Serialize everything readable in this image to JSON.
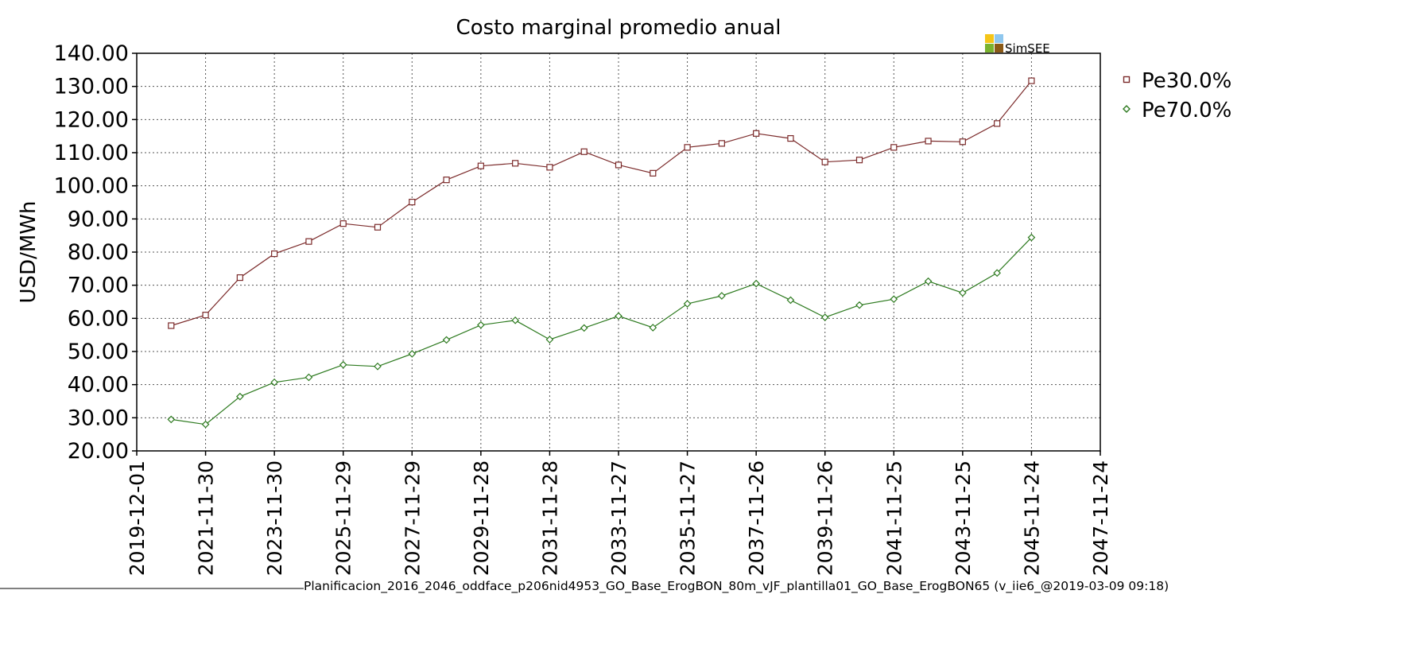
{
  "chart_data": {
    "type": "line",
    "title": "Costo marginal promedio anual",
    "ylabel": "USD/MWh",
    "xlabel": "",
    "x_axis_type": "date",
    "xlim": [
      "2019-12-01",
      "2047-11-24"
    ],
    "ylim": [
      20,
      140
    ],
    "y_ticks": [
      "20.00",
      "30.00",
      "40.00",
      "50.00",
      "60.00",
      "70.00",
      "80.00",
      "90.00",
      "100.00",
      "110.00",
      "120.00",
      "130.00",
      "140.00"
    ],
    "x_ticks": [
      "2019-12-01",
      "2021-11-30",
      "2023-11-30",
      "2025-11-29",
      "2027-11-29",
      "2029-11-28",
      "2031-11-28",
      "2033-11-27",
      "2035-11-27",
      "2037-11-26",
      "2039-11-26",
      "2041-11-25",
      "2043-11-25",
      "2045-11-24",
      "2047-11-24"
    ],
    "grid": true,
    "legend_position": "right",
    "x": [
      "2020-11-30",
      "2021-11-30",
      "2022-11-30",
      "2023-11-30",
      "2024-11-29",
      "2025-11-29",
      "2026-11-29",
      "2027-11-29",
      "2028-11-28",
      "2029-11-28",
      "2030-11-28",
      "2031-11-28",
      "2032-11-27",
      "2033-11-27",
      "2034-11-27",
      "2035-11-27",
      "2036-11-26",
      "2037-11-26",
      "2038-11-26",
      "2039-11-26",
      "2040-11-25",
      "2041-11-25",
      "2042-11-25",
      "2043-11-25",
      "2044-11-24",
      "2045-11-24"
    ],
    "series": [
      {
        "name": "Pe30.0%",
        "color": "#7b2a2a",
        "marker": "square",
        "values": [
          57.8,
          61.0,
          72.3,
          79.5,
          83.2,
          88.6,
          87.5,
          95.1,
          101.8,
          106.0,
          106.8,
          105.6,
          110.3,
          106.3,
          103.8,
          111.6,
          112.8,
          115.8,
          114.3,
          107.2,
          107.8,
          111.6,
          113.5,
          113.3,
          118.8,
          131.7
        ]
      },
      {
        "name": "Pe70.0%",
        "color": "#2d7a1f",
        "marker": "diamond",
        "values": [
          29.5,
          28.0,
          36.4,
          40.7,
          42.2,
          46.0,
          45.5,
          49.3,
          53.5,
          58.0,
          59.4,
          53.6,
          57.1,
          60.7,
          57.2,
          64.4,
          66.8,
          70.5,
          65.5,
          60.3,
          64.0,
          65.8,
          71.2,
          67.7,
          73.7,
          84.4
        ]
      }
    ]
  },
  "brand": {
    "label": "SimSEE",
    "colors": [
      "#f5c518",
      "#8fc7ee",
      "#7ab32e",
      "#8b5a17"
    ]
  },
  "footer": {
    "text": "Planificacion_2016_2046_oddface_p206nid4953_GO_Base_ErogBON_80m_vJF_plantilla01_GO_Base_ErogBON65 (v_iie6_@2019-03-09 09:18)"
  }
}
